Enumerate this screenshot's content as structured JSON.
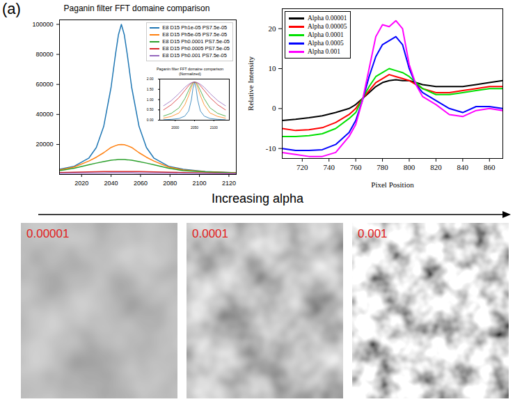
{
  "panel_label": "(a)",
  "arrow_label": "Increasing alpha",
  "images": [
    {
      "label": "0.00001"
    },
    {
      "label": "0.0001"
    },
    {
      "label": "0.001"
    }
  ],
  "chart_data": [
    {
      "type": "line",
      "title": "Paganin filter FFT domaine comparison",
      "x": [
        2005,
        2015,
        2025,
        2030,
        2035,
        2040,
        2043,
        2045,
        2047,
        2049,
        2051,
        2054,
        2059,
        2064,
        2069,
        2079,
        2089,
        2104,
        2125
      ],
      "series": [
        {
          "name": "E8 D15 Ph1e-05 PS7.5e-05",
          "color": "#1f77b4",
          "values": [
            3500,
            5500,
            11000,
            18000,
            32000,
            58000,
            80000,
            93000,
            100000,
            93000,
            80000,
            58000,
            32000,
            18000,
            11000,
            5500,
            3500,
            2000,
            1200
          ]
        },
        {
          "name": "E8 D15 Ph5e-05 PS7.5e-05",
          "color": "#ff7f0e",
          "values": [
            3000,
            5000,
            9000,
            11500,
            14500,
            18000,
            19200,
            19800,
            20000,
            19800,
            19200,
            18000,
            14500,
            11500,
            9000,
            5000,
            3000,
            1800,
            1100
          ]
        },
        {
          "name": "E8 D15 Ph0.0001 PS7.5e-05",
          "color": "#2ca02c",
          "values": [
            2500,
            4200,
            6500,
            7600,
            8600,
            9500,
            9800,
            9950,
            10000,
            9950,
            9800,
            9500,
            8600,
            7600,
            6500,
            4200,
            2500,
            1700,
            1000
          ]
        },
        {
          "name": "E8 D15 Ph0.0005 PS7.5e-05",
          "color": "#d62728",
          "values": [
            1300,
            1550,
            1750,
            1850,
            1920,
            1970,
            1990,
            2000,
            2000,
            2000,
            1990,
            1970,
            1920,
            1850,
            1750,
            1550,
            1300,
            1000,
            700
          ]
        },
        {
          "name": "E8 D15 Ph0.001 PS7.5e-05",
          "color": "#9467bd",
          "values": [
            850,
            900,
            950,
            970,
            985,
            995,
            1000,
            1000,
            1000,
            1000,
            1000,
            995,
            985,
            970,
            950,
            900,
            850,
            700,
            550
          ]
        }
      ],
      "xlim": [
        2005,
        2125
      ],
      "xticks": [
        2020,
        2040,
        2060,
        2080,
        2100,
        2120
      ],
      "ylim": [
        0,
        103000
      ],
      "yticks": [
        20000,
        40000,
        60000,
        80000,
        100000
      ],
      "grid": false,
      "legend": "upper right"
    },
    {
      "type": "line",
      "title": "Paganin filter FFT domaine comparison (Normalized)",
      "x": [
        1970,
        1990,
        2010,
        2025,
        2035,
        2042,
        2046,
        2050,
        2054,
        2058,
        2065,
        2075,
        2090,
        2110,
        2130
      ],
      "series": [
        {
          "name": "E8 D15 Ph1e-05 PS7.5e-05",
          "color": "#1f77b4",
          "values": [
            0.02,
            0.04,
            0.08,
            0.2,
            0.45,
            1.0,
            1.55,
            1.85,
            1.55,
            1.0,
            0.45,
            0.2,
            0.08,
            0.04,
            0.02
          ]
        },
        {
          "name": "E8 D15 Ph5e-05 PS7.5e-05",
          "color": "#ff7f0e",
          "values": [
            0.1,
            0.18,
            0.35,
            0.75,
            1.2,
            1.6,
            1.78,
            1.85,
            1.78,
            1.6,
            1.2,
            0.75,
            0.35,
            0.18,
            0.1
          ]
        },
        {
          "name": "E8 D15 Ph0.0001 PS7.5e-05",
          "color": "#2ca02c",
          "values": [
            0.2,
            0.33,
            0.6,
            1.05,
            1.45,
            1.72,
            1.82,
            1.85,
            1.82,
            1.72,
            1.45,
            1.05,
            0.6,
            0.33,
            0.2
          ]
        },
        {
          "name": "E8 D15 Ph0.0005 PS7.5e-05",
          "color": "#d62728",
          "values": [
            0.5,
            0.75,
            1.1,
            1.45,
            1.68,
            1.8,
            1.84,
            1.85,
            1.84,
            1.8,
            1.68,
            1.45,
            1.1,
            0.75,
            0.5
          ]
        },
        {
          "name": "E8 D15 Ph0.001 PS7.5e-05",
          "color": "#9467bd",
          "values": [
            0.7,
            0.95,
            1.3,
            1.6,
            1.75,
            1.82,
            1.85,
            1.85,
            1.85,
            1.82,
            1.75,
            1.6,
            1.3,
            0.95,
            0.7
          ]
        }
      ],
      "xlim": [
        1960,
        2140
      ],
      "xticks": [
        2000,
        2050,
        2100
      ],
      "ylim": [
        0,
        2.0
      ],
      "yticks": [
        {
          "value": 0,
          "label": "0.00"
        },
        {
          "value": 0.5,
          "label": "0.50"
        },
        {
          "value": 1,
          "label": "1.00"
        },
        {
          "value": 1.5,
          "label": "1.50"
        },
        {
          "value": 2,
          "label": "2.00"
        }
      ],
      "grid": false
    },
    {
      "type": "line",
      "x_label": "Pixel Position",
      "y_label": "Relative Intensity",
      "x": [
        705,
        715,
        725,
        735,
        745,
        755,
        760,
        765,
        770,
        775,
        780,
        785,
        790,
        795,
        800,
        805,
        810,
        820,
        830,
        840,
        850,
        860,
        870
      ],
      "series": [
        {
          "name": "Alpha 0.00001",
          "color": "#000000",
          "values": [
            -3,
            -2.7,
            -2.3,
            -1.8,
            -1,
            0,
            1,
            2.5,
            4,
            5.5,
            6.5,
            7,
            7.2,
            7,
            7,
            6.5,
            6,
            5.5,
            5.5,
            5.5,
            6,
            6.5,
            7
          ]
        },
        {
          "name": "Alpha 0.00005",
          "color": "#ff0000",
          "values": [
            -5,
            -5.5,
            -5.3,
            -4.8,
            -3.5,
            -1.5,
            0,
            2.5,
            4.5,
            6.5,
            7.5,
            8.5,
            8,
            7.5,
            7,
            6,
            5,
            4,
            4,
            4.5,
            5,
            5.5,
            5.5
          ]
        },
        {
          "name": "Alpha 0.0001",
          "color": "#00e000",
          "values": [
            -7,
            -7,
            -6.8,
            -6.3,
            -5,
            -2.5,
            -1,
            2.5,
            5.5,
            8,
            9,
            10,
            9.5,
            9,
            8,
            6.5,
            5,
            3.5,
            3.5,
            4,
            4.5,
            5,
            5
          ]
        },
        {
          "name": "Alpha 0.0005",
          "color": "#0000ff",
          "values": [
            -10,
            -10.5,
            -10.5,
            -10.3,
            -9,
            -6,
            -3,
            2,
            8,
            13,
            16,
            17,
            18,
            16,
            10,
            6,
            4,
            2,
            0,
            -1,
            0.5,
            0.5,
            0
          ]
        },
        {
          "name": "Alpha 0.001",
          "color": "#ff00ff",
          "values": [
            -11,
            -11.5,
            -12,
            -12,
            -11,
            -7,
            -4,
            2,
            10,
            18,
            21,
            20.5,
            22,
            20,
            11,
            6,
            3,
            1,
            -1.5,
            -2,
            -0.5,
            0,
            -0.5
          ]
        }
      ],
      "xlim": [
        705,
        870
      ],
      "xticks": [
        720,
        740,
        760,
        780,
        800,
        820,
        840,
        860
      ],
      "ylim": [
        -12.5,
        25
      ],
      "yticks": [
        -10,
        0,
        10,
        20
      ],
      "grid": false,
      "legend": "upper left"
    }
  ]
}
